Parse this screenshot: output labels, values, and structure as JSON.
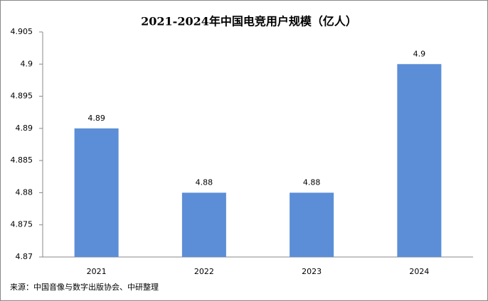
{
  "chart_data": {
    "type": "bar",
    "title": "2021-2024年中国电竞用户规模（亿人）",
    "categories": [
      "2021",
      "2022",
      "2023",
      "2024"
    ],
    "values": [
      4.89,
      4.88,
      4.88,
      4.9
    ],
    "color": "#5b8ed6",
    "ylim": [
      4.87,
      4.905
    ],
    "yticks": [
      4.87,
      4.875,
      4.88,
      4.885,
      4.89,
      4.895,
      4.9,
      4.905
    ],
    "grid": false,
    "source": "来源：中国音像与数字出版协会、中研整理"
  }
}
